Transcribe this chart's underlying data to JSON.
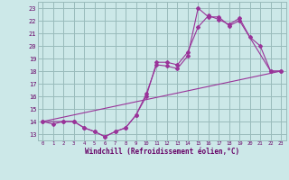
{
  "xlabel": "Windchill (Refroidissement éolien,°C)",
  "bg_color": "#cce8e8",
  "grid_color": "#99bbbb",
  "line_color": "#993399",
  "xlim": [
    -0.5,
    23.5
  ],
  "ylim": [
    12.5,
    23.5
  ],
  "xticks": [
    0,
    1,
    2,
    3,
    4,
    5,
    6,
    7,
    8,
    9,
    10,
    11,
    12,
    13,
    14,
    15,
    16,
    17,
    18,
    19,
    20,
    21,
    22,
    23
  ],
  "yticks": [
    13,
    14,
    15,
    16,
    17,
    18,
    19,
    20,
    21,
    22,
    23
  ],
  "line1_x": [
    0,
    1,
    2,
    3,
    4,
    5,
    6,
    7,
    8,
    9,
    10,
    11,
    12,
    13,
    14,
    15,
    16,
    17,
    18,
    19,
    20,
    21,
    22,
    23
  ],
  "line1_y": [
    14.0,
    13.8,
    14.0,
    14.0,
    13.5,
    13.2,
    12.8,
    13.2,
    13.5,
    14.5,
    16.0,
    18.7,
    18.7,
    18.5,
    19.5,
    21.5,
    22.4,
    22.1,
    21.7,
    22.2,
    20.7,
    20.0,
    18.0,
    18.0
  ],
  "line2_x": [
    0,
    2,
    3,
    4,
    5,
    6,
    7,
    8,
    9,
    10,
    11,
    12,
    13,
    14,
    15,
    16,
    17,
    18,
    19,
    22,
    23
  ],
  "line2_y": [
    14.0,
    14.0,
    14.0,
    13.5,
    13.2,
    12.8,
    13.2,
    13.5,
    14.5,
    16.2,
    18.5,
    18.4,
    18.2,
    19.2,
    23.0,
    22.3,
    22.3,
    21.6,
    22.0,
    18.0,
    18.0
  ],
  "line3_x": [
    0,
    23
  ],
  "line3_y": [
    14.0,
    18.0
  ]
}
